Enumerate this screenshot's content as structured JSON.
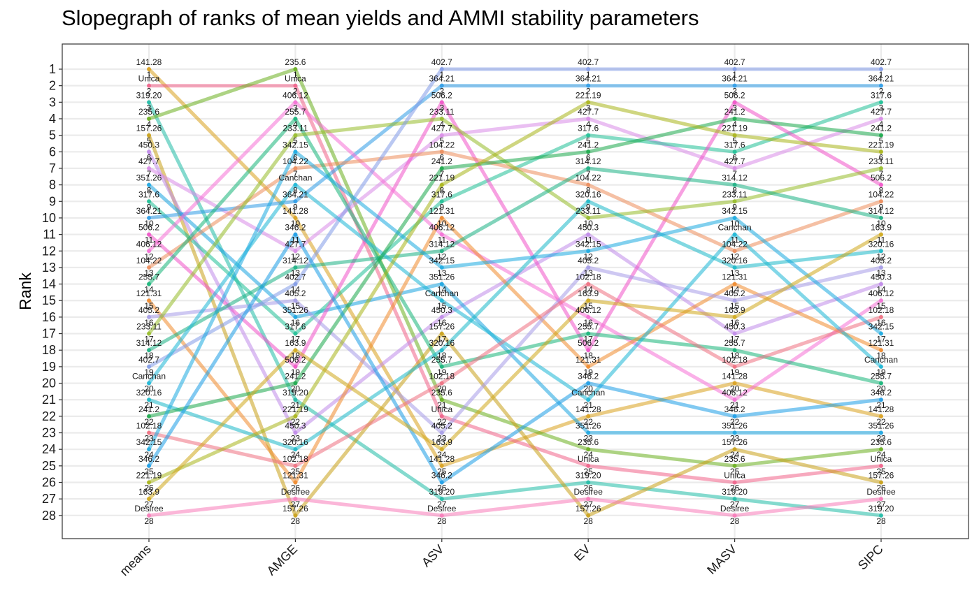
{
  "title": "Slopegraph of ranks of mean yields and AMMI stability parameters",
  "chart_data": {
    "type": "line",
    "subtype": "slopegraph",
    "title": "Slopegraph of ranks of mean yields and AMMI stability parameters",
    "xlabel": "",
    "ylabel": "Rank",
    "categories": [
      "means",
      "AMGE",
      "ASV",
      "EV",
      "MASV",
      "SIPC"
    ],
    "y_ticks": [
      1,
      2,
      3,
      4,
      5,
      6,
      7,
      8,
      9,
      10,
      11,
      12,
      13,
      14,
      15,
      16,
      17,
      18,
      19,
      20,
      21,
      22,
      23,
      24,
      25,
      26,
      27,
      28
    ],
    "ylim": [
      1,
      28
    ],
    "y_reversed": true,
    "grid": true,
    "legend": "none",
    "rankings": [
      [
        "141.28",
        "Unica",
        "319.20",
        "235.6",
        "157.26",
        "450.3",
        "427.7",
        "351.26",
        "317.6",
        "364.21",
        "506.2",
        "406.12",
        "104.22",
        "255.7",
        "121.31",
        "405.2",
        "233.11",
        "314.12",
        "402.7",
        "Canchan",
        "320.16",
        "241.2",
        "102.18",
        "342.15",
        "346.2",
        "221.19",
        "163.9",
        "Desiree"
      ],
      [
        "235.6",
        "Unica",
        "406.12",
        "255.7",
        "233.11",
        "342.15",
        "104.22",
        "Canchan",
        "364.21",
        "141.28",
        "346.2",
        "427.7",
        "314.12",
        "402.7",
        "405.2",
        "351.26",
        "317.6",
        "163.9",
        "506.2",
        "241.2",
        "319.20",
        "221.19",
        "450.3",
        "320.16",
        "102.18",
        "121.31",
        "Desiree",
        "157.26"
      ],
      [
        "402.7",
        "364.21",
        "506.2",
        "233.11",
        "427.7",
        "104.22",
        "241.2",
        "221.19",
        "317.6",
        "121.31",
        "406.12",
        "314.12",
        "342.15",
        "351.26",
        "Canchan",
        "450.3",
        "157.26",
        "320.16",
        "255.7",
        "102.18",
        "235.6",
        "Unica",
        "405.2",
        "163.9",
        "141.28",
        "346.2",
        "319.20",
        "Desiree"
      ],
      [
        "402.7",
        "364.21",
        "221.19",
        "427.7",
        "317.6",
        "241.2",
        "314.12",
        "104.22",
        "320.16",
        "233.11",
        "450.3",
        "342.15",
        "405.2",
        "102.18",
        "163.9",
        "406.12",
        "255.7",
        "506.2",
        "121.31",
        "346.2",
        "Canchan",
        "141.28",
        "351.26",
        "235.6",
        "Unica",
        "319.20",
        "Desiree",
        "157.26"
      ],
      [
        "402.7",
        "364.21",
        "506.2",
        "241.2",
        "221.19",
        "317.6",
        "427.7",
        "314.12",
        "233.11",
        "342.15",
        "Canchan",
        "104.22",
        "320.16",
        "121.31",
        "405.2",
        "163.9",
        "450.3",
        "255.7",
        "102.18",
        "141.28",
        "406.12",
        "346.2",
        "351.26",
        "157.26",
        "235.6",
        "Unica",
        "319.20",
        "Desiree"
      ],
      [
        "402.7",
        "364.21",
        "317.6",
        "427.7",
        "241.2",
        "221.19",
        "233.11",
        "506.2",
        "104.22",
        "314.12",
        "163.9",
        "320.16",
        "405.2",
        "450.3",
        "406.12",
        "102.18",
        "342.15",
        "121.31",
        "Canchan",
        "255.7",
        "346.2",
        "141.28",
        "351.26",
        "235.6",
        "Unica",
        "157.26",
        "Desiree",
        "319.20"
      ]
    ],
    "series": [
      {
        "name": "141.28",
        "values": [
          1,
          10,
          25,
          22,
          20,
          22
        ],
        "color": "#d9a01c"
      },
      {
        "name": "Unica",
        "values": [
          2,
          2,
          22,
          25,
          26,
          25
        ],
        "color": "#f06289"
      },
      {
        "name": "319.20",
        "values": [
          3,
          21,
          27,
          26,
          27,
          28
        ],
        "color": "#1fbba5"
      },
      {
        "name": "235.6",
        "values": [
          4,
          1,
          21,
          24,
          25,
          24
        ],
        "color": "#6aaf1e"
      },
      {
        "name": "157.26",
        "values": [
          5,
          28,
          17,
          28,
          24,
          26
        ],
        "color": "#c9a018"
      },
      {
        "name": "450.3",
        "values": [
          6,
          23,
          16,
          11,
          17,
          14
        ],
        "color": "#c08aea"
      },
      {
        "name": "427.7",
        "values": [
          7,
          12,
          5,
          4,
          7,
          4
        ],
        "color": "#d98be8"
      },
      {
        "name": "351.26",
        "values": [
          8,
          16,
          14,
          23,
          23,
          23
        ],
        "color": "#1aa4e0"
      },
      {
        "name": "317.6",
        "values": [
          9,
          17,
          9,
          5,
          6,
          3
        ],
        "color": "#1fbf95"
      },
      {
        "name": "364.21",
        "values": [
          10,
          9,
          2,
          2,
          2,
          2
        ],
        "color": "#2d9be6"
      },
      {
        "name": "506.2",
        "values": [
          11,
          19,
          3,
          18,
          3,
          8
        ],
        "color": "#f052c8"
      },
      {
        "name": "406.12",
        "values": [
          12,
          3,
          11,
          16,
          21,
          15
        ],
        "color": "#f56fd6"
      },
      {
        "name": "104.22",
        "values": [
          13,
          7,
          6,
          8,
          12,
          9
        ],
        "color": "#ec8c5a"
      },
      {
        "name": "255.7",
        "values": [
          14,
          4,
          19,
          17,
          18,
          20
        ],
        "color": "#15b478"
      },
      {
        "name": "121.31",
        "values": [
          15,
          26,
          10,
          19,
          14,
          18
        ],
        "color": "#f08a2c"
      },
      {
        "name": "405.2",
        "values": [
          16,
          15,
          23,
          13,
          15,
          13
        ],
        "color": "#a59be8"
      },
      {
        "name": "233.11",
        "values": [
          17,
          5,
          4,
          10,
          9,
          7
        ],
        "color": "#96bc28"
      },
      {
        "name": "314.12",
        "values": [
          18,
          13,
          12,
          7,
          8,
          10
        ],
        "color": "#1ab083"
      },
      {
        "name": "402.7",
        "values": [
          19,
          14,
          1,
          1,
          1,
          1
        ],
        "color": "#829be8"
      },
      {
        "name": "Canchan",
        "values": [
          20,
          8,
          15,
          21,
          11,
          19
        ],
        "color": "#1bb6d6"
      },
      {
        "name": "320.16",
        "values": [
          21,
          24,
          18,
          9,
          13,
          12
        ],
        "color": "#1ab8c8"
      },
      {
        "name": "241.2",
        "values": [
          22,
          20,
          7,
          6,
          4,
          5
        ],
        "color": "#1aa84a"
      },
      {
        "name": "102.18",
        "values": [
          23,
          25,
          20,
          14,
          19,
          16
        ],
        "color": "#ef6f80"
      },
      {
        "name": "342.15",
        "values": [
          24,
          6,
          13,
          12,
          10,
          17
        ],
        "color": "#1aa9e0"
      },
      {
        "name": "346.2",
        "values": [
          25,
          11,
          26,
          20,
          22,
          21
        ],
        "color": "#1a9ce6"
      },
      {
        "name": "221.19",
        "values": [
          26,
          22,
          8,
          3,
          5,
          6
        ],
        "color": "#a8b418"
      },
      {
        "name": "163.9",
        "values": [
          27,
          18,
          24,
          15,
          16,
          11
        ],
        "color": "#d0a81a"
      },
      {
        "name": "Desiree",
        "values": [
          28,
          27,
          28,
          27,
          28,
          27
        ],
        "color": "#f87ab8"
      }
    ]
  }
}
